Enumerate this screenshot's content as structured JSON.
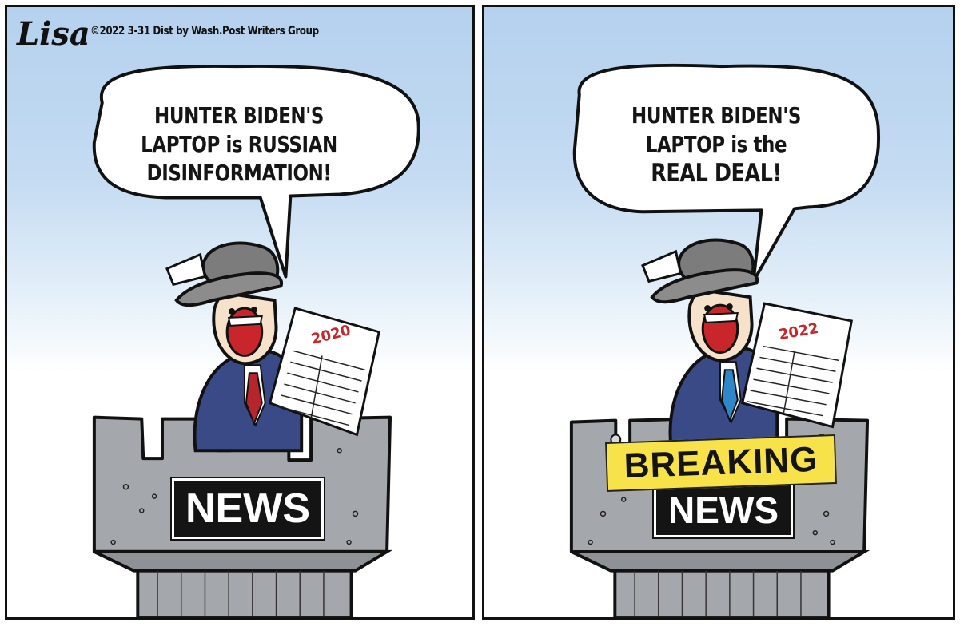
{
  "signature": "Lisa",
  "credit": "©2022 3-31 Dist by Wash.Post Writers Group",
  "panels": [
    {
      "speech": [
        "HUNTER BIDEN'S",
        "LAPTOP is RUSSIAN",
        "DISINFORMATION!"
      ],
      "paper_year": "2020",
      "podium_sign": "NEWS",
      "tie_color": "#b5252c"
    },
    {
      "speech": [
        "HUNTER BIDEN'S",
        "LAPTOP is the",
        "REAL DEAL!"
      ],
      "paper_year": "2022",
      "banner": "BREAKING",
      "podium_sign": "NEWS",
      "tie_color": "#2f86c9"
    }
  ]
}
